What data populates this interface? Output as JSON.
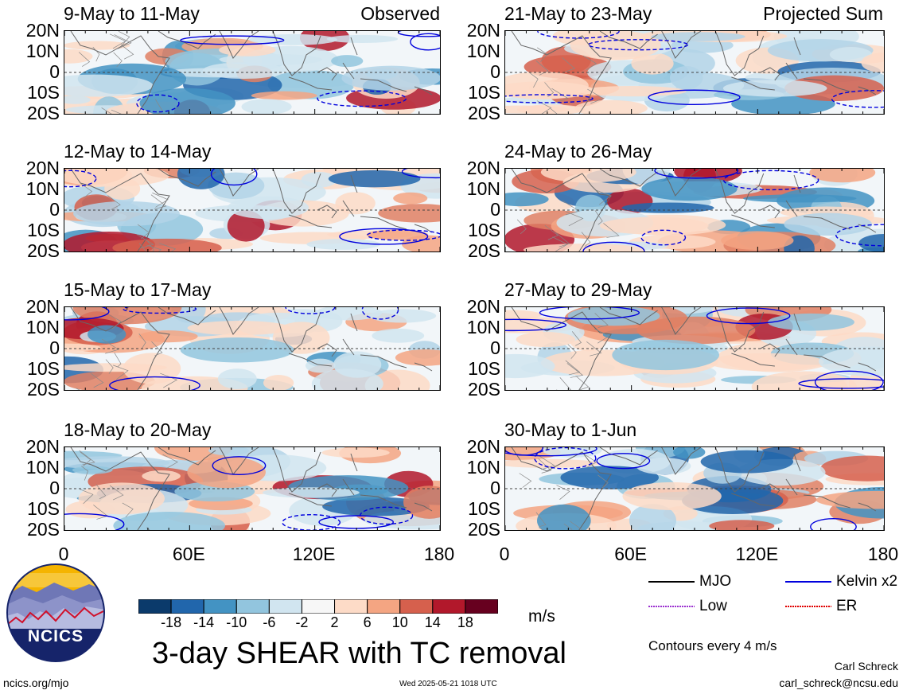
{
  "panels_left": [
    {
      "title": "9-May to 11-May",
      "tag": "Observed"
    },
    {
      "title": "12-May to 14-May",
      "tag": ""
    },
    {
      "title": "15-May to 17-May",
      "tag": ""
    },
    {
      "title": "18-May to 20-May",
      "tag": ""
    }
  ],
  "panels_right": [
    {
      "title": "21-May to 23-May",
      "tag": "Projected Sum"
    },
    {
      "title": "24-May to 26-May",
      "tag": ""
    },
    {
      "title": "27-May to 29-May",
      "tag": ""
    },
    {
      "title": "30-May to 1-Jun",
      "tag": ""
    }
  ],
  "lat_labels": [
    "20N",
    "10N",
    "0",
    "10S",
    "20S"
  ],
  "lon_labels": [
    "0",
    "60E",
    "120E",
    "180"
  ],
  "legend": {
    "mjo": "MJO",
    "kelvin": "Kelvin x2",
    "low": "Low",
    "er": "ER",
    "contours_note": "Contours every 4 m/s",
    "colors": {
      "mjo": "#000000",
      "kelvin": "#0000dd",
      "low": "#9b30d0",
      "er": "#e00000"
    }
  },
  "colorbar": {
    "labels": [
      "-18",
      "-14",
      "-10",
      "-6",
      "-2",
      "2",
      "6",
      "10",
      "14",
      "18"
    ],
    "unit": "m/s",
    "colors": [
      "#0b3a6b",
      "#2166ac",
      "#4393c3",
      "#92c5de",
      "#d1e5f0",
      "#f7f7f7",
      "#fddbc7",
      "#f4a582",
      "#d6604d",
      "#b2182b",
      "#67001f"
    ]
  },
  "main_title": "3-day SHEAR with TC removal",
  "logo_text": "NCICS",
  "footer": {
    "url": "ncics.org/mjo",
    "timestamp": "Wed 2025-05-21 1018 UTC",
    "author": "Carl Schreck",
    "email": "carl_schreck@ncsu.edu"
  }
}
